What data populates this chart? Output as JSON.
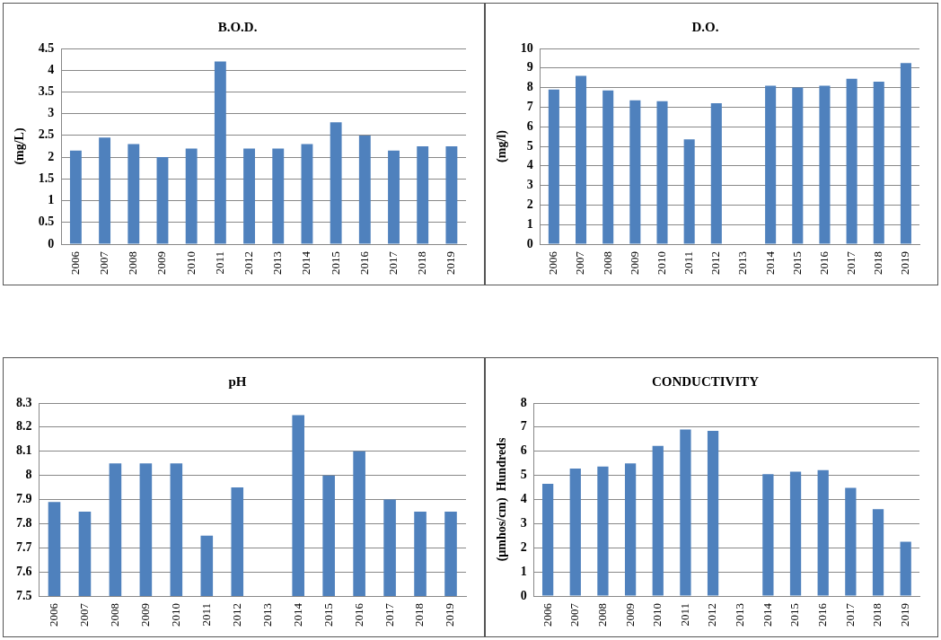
{
  "chart_data": [
    {
      "type": "bar",
      "title": "B.O.D.",
      "ylabel": "(mg/L)",
      "categories": [
        "2006",
        "2007",
        "2008",
        "2009",
        "2010",
        "2011",
        "2012",
        "2013",
        "2014",
        "2015",
        "2016",
        "2017",
        "2018",
        "2019"
      ],
      "values": [
        2.15,
        2.45,
        2.3,
        2.0,
        2.2,
        4.2,
        2.2,
        2.2,
        2.3,
        2.8,
        2.5,
        2.15,
        2.25,
        2.25
      ],
      "color": "#4f81bd",
      "ylim": [
        0,
        4.5
      ],
      "yticks": [
        0,
        0.5,
        1,
        1.5,
        2,
        2.5,
        3,
        3.5,
        4,
        4.5
      ],
      "grid": "y"
    },
    {
      "type": "bar",
      "title": "D.O.",
      "ylabel": "(mg/l)",
      "categories": [
        "2006",
        "2007",
        "2008",
        "2009",
        "2010",
        "2011",
        "2012",
        "2013",
        "2014",
        "2015",
        "2016",
        "2017",
        "2018",
        "2019"
      ],
      "values": [
        7.9,
        8.6,
        7.85,
        7.35,
        7.3,
        5.35,
        7.2,
        null,
        8.1,
        8.0,
        8.1,
        8.45,
        8.3,
        9.25
      ],
      "color": "#4f81bd",
      "ylim": [
        0,
        10
      ],
      "yticks": [
        0,
        1,
        2,
        3,
        4,
        5,
        6,
        7,
        8,
        9,
        10
      ],
      "grid": "y"
    },
    {
      "type": "bar",
      "title": "pH",
      "categories": [
        "2006",
        "2007",
        "2008",
        "2009",
        "2010",
        "2011",
        "2012",
        "2013",
        "2014",
        "2015",
        "2016",
        "2017",
        "2018",
        "2019"
      ],
      "values": [
        7.89,
        7.85,
        8.05,
        8.05,
        8.05,
        7.75,
        7.95,
        null,
        8.25,
        8.0,
        8.1,
        7.9,
        7.85,
        7.85
      ],
      "color": "#4f81bd",
      "ylim": [
        7.5,
        8.3
      ],
      "yticks": [
        7.5,
        7.6,
        7.7,
        7.8,
        7.9,
        8,
        8.1,
        8.2,
        8.3
      ],
      "grid": "y"
    },
    {
      "type": "bar",
      "title": "CONDUCTIVITY",
      "ylabel": "(µmhos/cm)  Hundreds",
      "categories": [
        "2006",
        "2007",
        "2008",
        "2009",
        "2010",
        "2011",
        "2012",
        "2013",
        "2014",
        "2015",
        "2016",
        "2017",
        "2018",
        "2019"
      ],
      "values": [
        4.65,
        5.28,
        5.37,
        5.5,
        6.22,
        6.9,
        6.85,
        null,
        5.05,
        5.15,
        5.22,
        4.48,
        3.6,
        2.25
      ],
      "color": "#4f81bd",
      "ylim": [
        0,
        8
      ],
      "yticks": [
        0,
        1,
        2,
        3,
        4,
        5,
        6,
        7,
        8
      ],
      "grid": "y"
    }
  ]
}
